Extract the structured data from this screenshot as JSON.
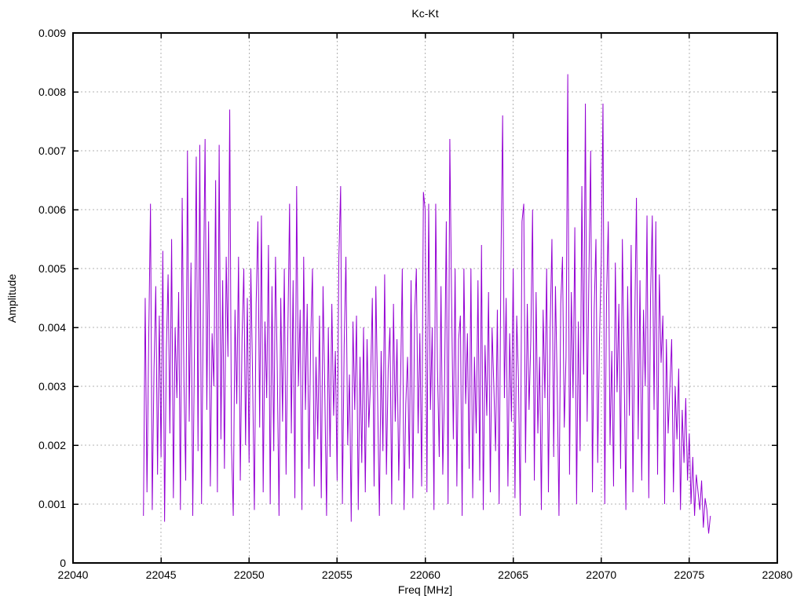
{
  "figure": {
    "background": "#ffffff"
  },
  "chart_data": {
    "type": "line",
    "title": "Kc-Kt",
    "xlabel": "Freq [MHz]",
    "ylabel": "Amplitude",
    "xlim": [
      22040,
      22080
    ],
    "ylim": [
      0,
      0.009
    ],
    "x_ticks": [
      22040,
      22045,
      22050,
      22055,
      22060,
      22065,
      22070,
      22075,
      22080
    ],
    "x_tick_labels": [
      "22040",
      "22045",
      "22050",
      "22055",
      "22060",
      "22065",
      "22070",
      "22075",
      "22080"
    ],
    "y_ticks": [
      0,
      0.001,
      0.002,
      0.003,
      0.004,
      0.005,
      0.006,
      0.007,
      0.008,
      0.009
    ],
    "y_tick_labels": [
      "0",
      "0.001",
      "0.002",
      "0.003",
      "0.004",
      "0.005",
      "0.006",
      "0.007",
      "0.008",
      "0.009"
    ],
    "grid": true,
    "legend": "none",
    "line_color": "#9400d3",
    "grid_color": "#b3b3b3",
    "axis_color": "#000000",
    "series": [
      {
        "name": "Kc-Kt",
        "x_start": 22044.0,
        "x_step": 0.1,
        "amp_scale": 0.0001,
        "amplitudes": [
          8,
          45,
          12,
          38,
          61,
          9,
          33,
          47,
          15,
          42,
          18,
          53,
          7,
          36,
          49,
          22,
          55,
          11,
          40,
          28,
          46,
          9,
          62,
          31,
          14,
          70,
          24,
          51,
          8,
          37,
          69,
          19,
          71,
          10,
          44,
          72,
          26,
          58,
          13,
          39,
          30,
          65,
          12,
          71,
          21,
          48,
          16,
          52,
          35,
          77,
          20,
          8,
          43,
          27,
          52,
          14,
          38,
          50,
          20,
          45,
          17,
          50,
          31,
          9,
          44,
          58,
          23,
          59,
          12,
          41,
          28,
          54,
          10,
          47,
          19,
          52,
          33,
          8,
          45,
          24,
          50,
          15,
          39,
          61,
          22,
          48,
          11,
          64,
          30,
          43,
          9,
          52,
          26,
          44,
          16,
          38,
          50,
          13,
          35,
          21,
          42,
          11,
          47,
          29,
          8,
          40,
          18,
          44,
          25,
          36,
          14,
          52,
          64,
          10,
          37,
          52,
          20,
          32,
          7,
          41,
          26,
          42,
          9,
          35,
          17,
          40,
          12,
          38,
          23,
          31,
          45,
          13,
          47,
          28,
          8,
          36,
          19,
          49,
          15,
          33,
          40,
          10,
          44,
          24,
          38,
          14,
          30,
          50,
          9,
          27,
          35,
          16,
          48,
          11,
          42,
          50,
          22,
          39,
          13,
          63,
          60,
          12,
          61,
          26,
          40,
          9,
          61,
          33,
          18,
          47,
          15,
          30,
          58,
          10,
          72,
          45,
          21,
          50,
          13,
          38,
          42,
          8,
          50,
          27,
          39,
          16,
          50,
          11,
          35,
          22,
          48,
          14,
          54,
          9,
          37,
          25,
          46,
          12,
          40,
          30,
          19,
          43,
          10,
          50,
          76,
          28,
          45,
          13,
          39,
          24,
          50,
          11,
          42,
          31,
          8,
          58,
          61,
          17,
          44,
          26,
          38,
          60,
          14,
          46,
          22,
          35,
          9,
          43,
          28,
          50,
          12,
          40,
          55,
          18,
          47,
          30,
          8,
          44,
          52,
          23,
          35,
          83,
          15,
          46,
          28,
          57,
          10,
          41,
          19,
          64,
          32,
          78,
          24,
          49,
          70,
          12,
          43,
          55,
          17,
          38,
          51,
          78,
          10,
          45,
          58,
          20,
          36,
          13,
          51,
          29,
          44,
          16,
          55,
          33,
          9,
          47,
          25,
          54,
          12,
          40,
          62,
          21,
          48,
          14,
          43,
          30,
          59,
          11,
          45,
          59,
          26,
          58,
          15,
          49,
          34,
          42,
          10,
          38,
          22,
          30,
          38,
          12,
          30,
          21,
          33,
          9,
          26,
          17,
          28,
          14,
          22,
          10,
          18,
          8,
          15,
          12,
          9,
          14,
          6,
          11,
          9,
          5,
          8
        ]
      }
    ]
  }
}
